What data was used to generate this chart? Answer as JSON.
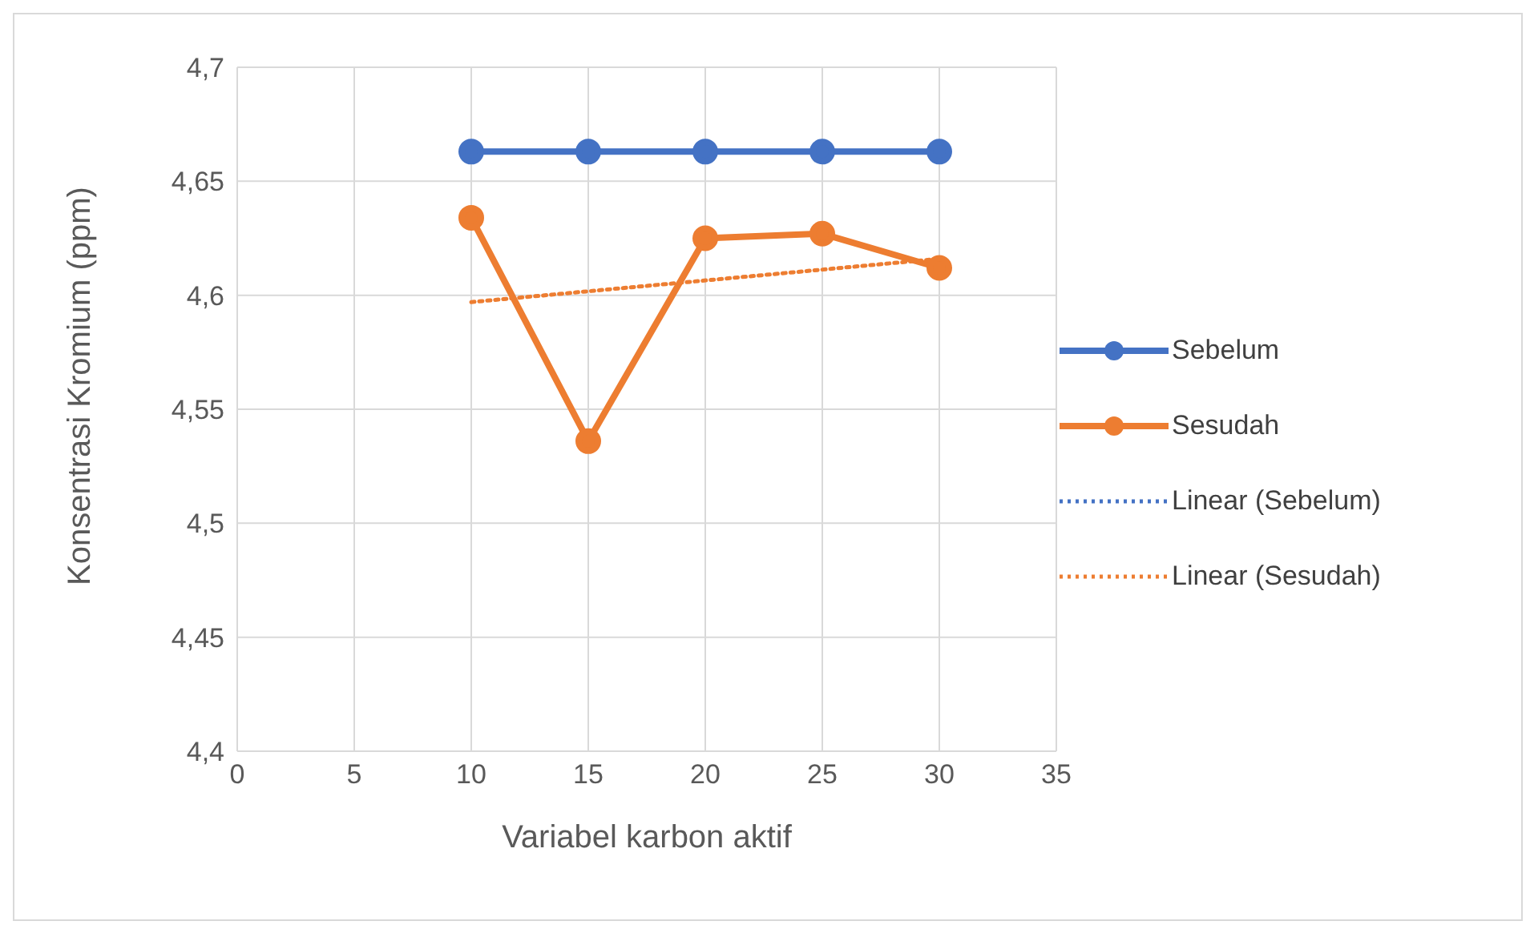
{
  "chart_data": {
    "type": "line",
    "xlabel": "Variabel karbon aktif",
    "ylabel": "Konsentrasi Kromium (ppm)",
    "x": [
      10,
      15,
      20,
      25,
      30
    ],
    "series": [
      {
        "name": "Sebelum",
        "color": "#4472c4",
        "values": [
          4.663,
          4.663,
          4.663,
          4.663,
          4.663
        ],
        "marker": "circle",
        "line_style": "solid"
      },
      {
        "name": "Sesudah",
        "color": "#ed7d31",
        "values": [
          4.634,
          4.536,
          4.625,
          4.627,
          4.612
        ],
        "marker": "circle",
        "line_style": "solid"
      },
      {
        "name": "Linear (Sebelum)",
        "color": "#4472c4",
        "values": [
          null,
          null,
          null,
          null,
          null
        ],
        "marker": "none",
        "line_style": "dotted"
      },
      {
        "name": "Linear (Sesudah)",
        "color": "#ed7d31",
        "x": [
          10,
          30
        ],
        "values": [
          4.597,
          4.616
        ],
        "marker": "none",
        "line_style": "dotted"
      }
    ],
    "xlim": [
      0,
      35
    ],
    "xticks": [
      0,
      5,
      10,
      15,
      20,
      25,
      30,
      35
    ],
    "ylim": [
      4.4,
      4.7
    ],
    "yticks": [
      {
        "value": 4.4,
        "label": "4,4"
      },
      {
        "value": 4.45,
        "label": "4,45"
      },
      {
        "value": 4.5,
        "label": "4,5"
      },
      {
        "value": 4.55,
        "label": "4,55"
      },
      {
        "value": 4.6,
        "label": "4,6"
      },
      {
        "value": 4.65,
        "label": "4,65"
      },
      {
        "value": 4.7,
        "label": "4,7"
      }
    ],
    "grid": true,
    "legend": "right"
  }
}
